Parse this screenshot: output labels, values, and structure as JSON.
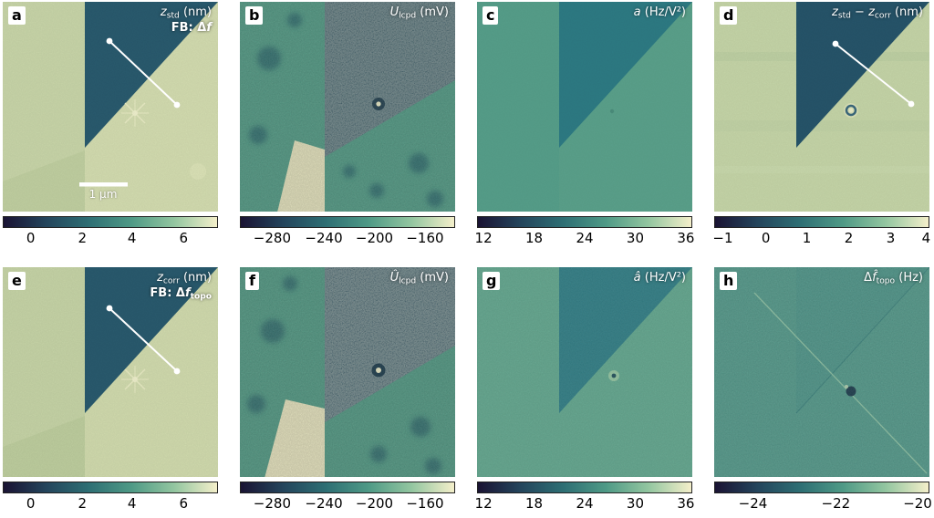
{
  "figure": {
    "colormap": [
      "#1a1333",
      "#24455c",
      "#2e6f74",
      "#4f9a86",
      "#93c6a0",
      "#f4efca"
    ],
    "panels": [
      {
        "letter": "a",
        "title": [
          {
            "t": "z",
            "s": "i"
          },
          {
            "t": "std",
            "s": "sub"
          },
          {
            "t": " (nm)"
          }
        ],
        "subtitle": [
          {
            "t": "FB: ",
            "s": "b"
          },
          {
            "t": "Δ"
          },
          {
            "t": "f",
            "s": "i"
          }
        ],
        "scalebar_label": "1 μm",
        "ticks": [
          {
            "label": "0",
            "pos": 0.13
          },
          {
            "label": "2",
            "pos": 0.37
          },
          {
            "label": "4",
            "pos": 0.6
          },
          {
            "label": "6",
            "pos": 0.84
          }
        ]
      },
      {
        "letter": "b",
        "title": [
          {
            "t": "U",
            "s": "i"
          },
          {
            "t": "lcpd",
            "s": "sub"
          },
          {
            "t": " (mV)"
          }
        ],
        "ticks": [
          {
            "label": "−280",
            "pos": 0.15
          },
          {
            "label": "−240",
            "pos": 0.39
          },
          {
            "label": "−200",
            "pos": 0.625
          },
          {
            "label": "−160",
            "pos": 0.86
          }
        ]
      },
      {
        "letter": "c",
        "title": [
          {
            "t": "a",
            "s": "i"
          },
          {
            "t": " (Hz/V²)"
          }
        ],
        "ticks": [
          {
            "label": "12",
            "pos": 0.03
          },
          {
            "label": "18",
            "pos": 0.265
          },
          {
            "label": "24",
            "pos": 0.5
          },
          {
            "label": "30",
            "pos": 0.735
          },
          {
            "label": "36",
            "pos": 0.97
          }
        ]
      },
      {
        "letter": "d",
        "title": [
          {
            "t": "z",
            "s": "i"
          },
          {
            "t": "std",
            "s": "sub"
          },
          {
            "t": " − "
          },
          {
            "t": "z",
            "s": "i"
          },
          {
            "t": "corr",
            "s": "sub"
          },
          {
            "t": " (nm)"
          }
        ],
        "ticks": [
          {
            "label": "−1",
            "pos": 0.04
          },
          {
            "label": "0",
            "pos": 0.24
          },
          {
            "label": "1",
            "pos": 0.43
          },
          {
            "label": "2",
            "pos": 0.625
          },
          {
            "label": "3",
            "pos": 0.82
          },
          {
            "label": "4",
            "pos": 0.985
          }
        ]
      },
      {
        "letter": "e",
        "title": [
          {
            "t": "z",
            "s": "i"
          },
          {
            "t": "corr",
            "s": "sub"
          },
          {
            "t": " (nm)"
          }
        ],
        "subtitle": [
          {
            "t": "FB: ",
            "s": "b"
          },
          {
            "t": "Δ"
          },
          {
            "t": "f",
            "s": "i"
          },
          {
            "t": "topo",
            "s": "sub"
          }
        ],
        "ticks": [
          {
            "label": "0",
            "pos": 0.13
          },
          {
            "label": "2",
            "pos": 0.37
          },
          {
            "label": "4",
            "pos": 0.6
          },
          {
            "label": "6",
            "pos": 0.84
          }
        ]
      },
      {
        "letter": "f",
        "title": [
          {
            "t": "Û",
            "s": "i"
          },
          {
            "t": "lcpd",
            "s": "sub"
          },
          {
            "t": " (mV)"
          }
        ],
        "ticks": [
          {
            "label": "−280",
            "pos": 0.15
          },
          {
            "label": "−240",
            "pos": 0.39
          },
          {
            "label": "−200",
            "pos": 0.625
          },
          {
            "label": "−160",
            "pos": 0.86
          }
        ]
      },
      {
        "letter": "g",
        "title": [
          {
            "t": "â",
            "s": "i"
          },
          {
            "t": " (Hz/V²)"
          }
        ],
        "ticks": [
          {
            "label": "12",
            "pos": 0.03
          },
          {
            "label": "18",
            "pos": 0.265
          },
          {
            "label": "24",
            "pos": 0.5
          },
          {
            "label": "30",
            "pos": 0.735
          },
          {
            "label": "36",
            "pos": 0.97
          }
        ]
      },
      {
        "letter": "h",
        "title": [
          {
            "t": "Δ"
          },
          {
            "t": "f̂",
            "s": "i"
          },
          {
            "t": "topo",
            "s": "sub"
          },
          {
            "t": " (Hz)"
          }
        ],
        "ticks": [
          {
            "label": "−24",
            "pos": 0.18
          },
          {
            "label": "−22",
            "pos": 0.565
          },
          {
            "label": "−20",
            "pos": 0.945
          }
        ]
      }
    ]
  }
}
